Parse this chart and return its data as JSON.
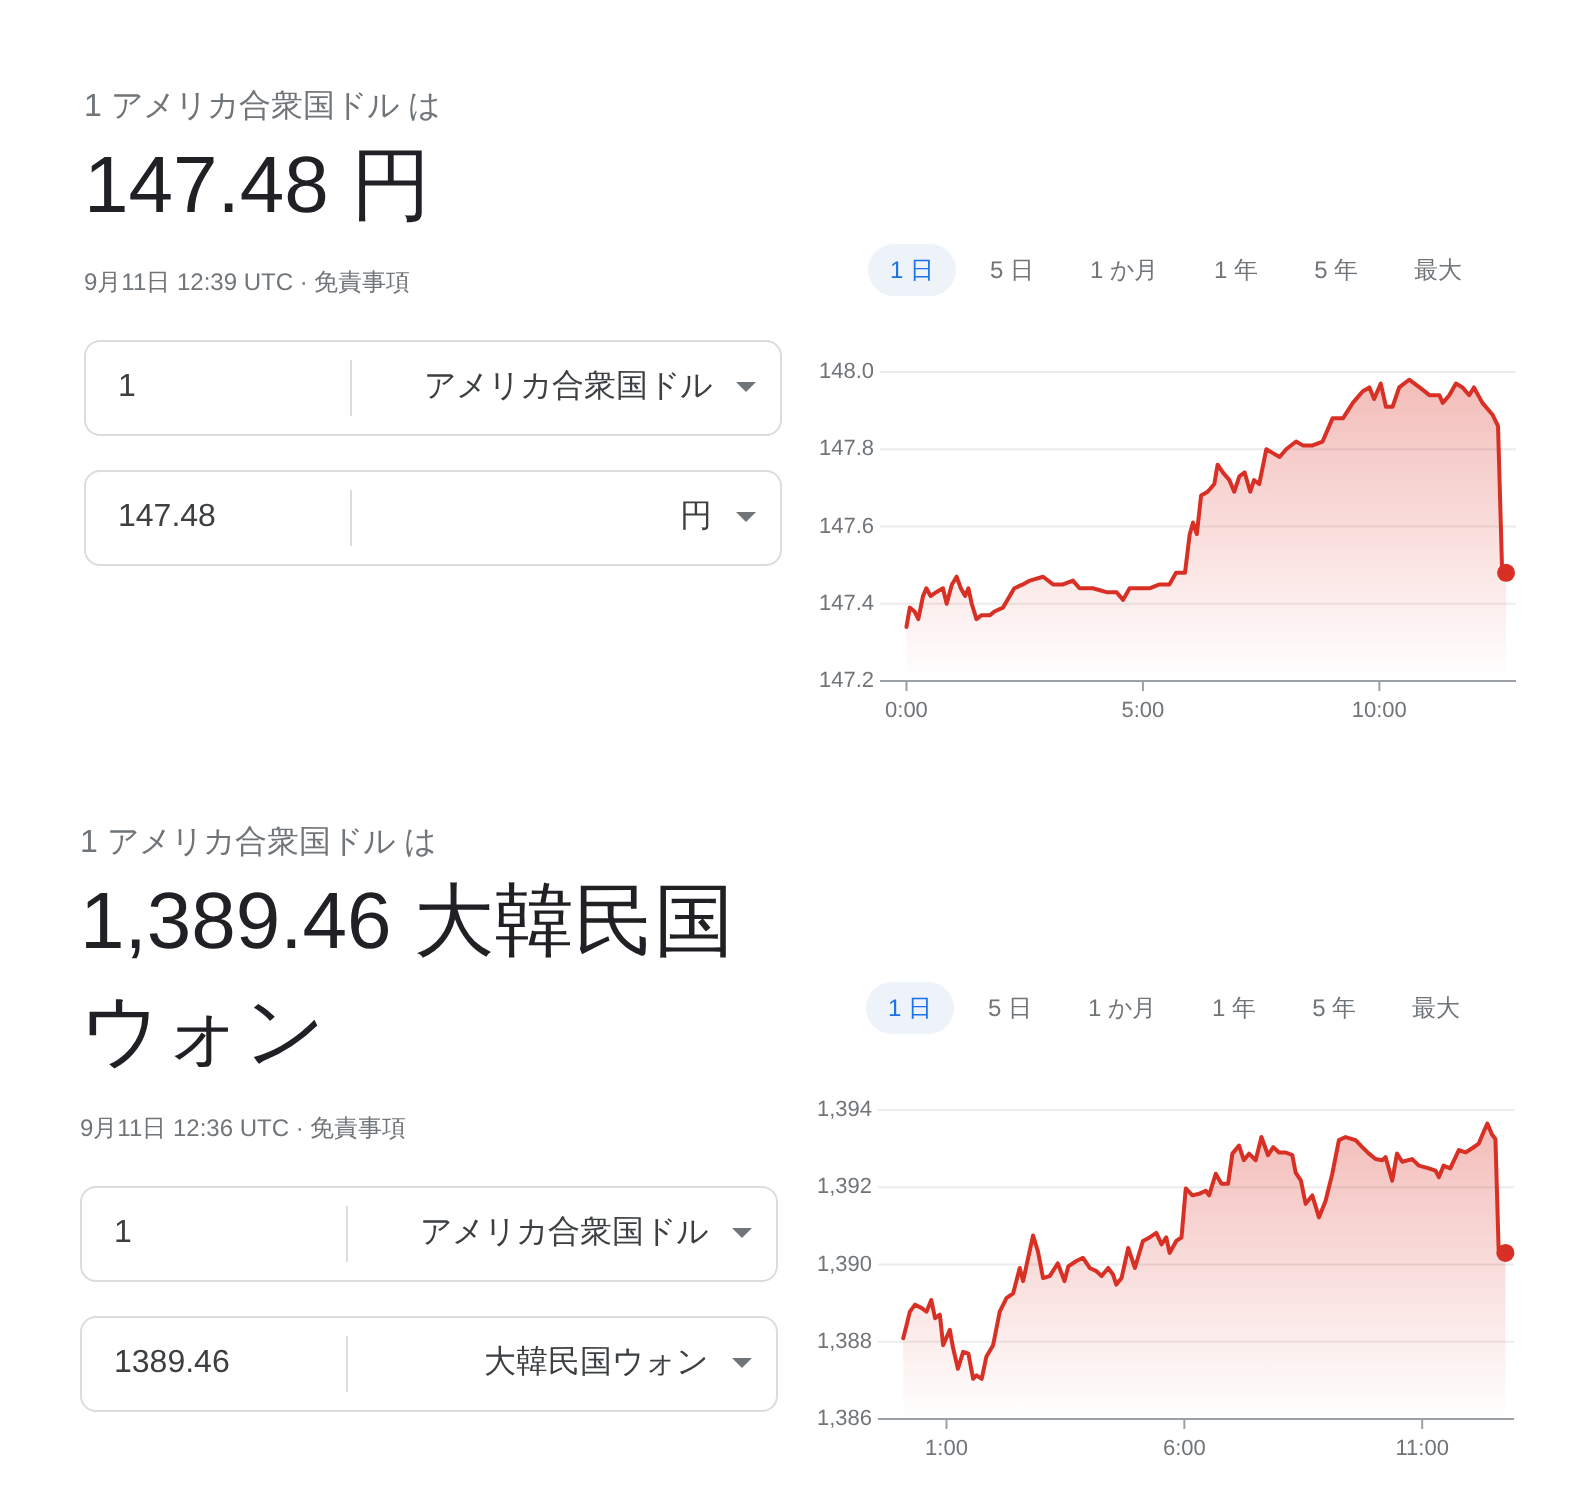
{
  "chart_data": [
    {
      "type": "other",
      "subtitle": "1 アメリカ合衆国ドル は",
      "title": "147.48 円",
      "annotations": [
        "9月11日 12:39 UTC · 免責事項",
        "1",
        "アメリカ合衆国ドル",
        "147.48",
        "円"
      ]
    },
    {
      "type": "area",
      "xlim": [
        -0.56,
        12.89
      ],
      "ylim": [
        147.2,
        148.0
      ],
      "xticks": [
        {
          "value": 0,
          "label": "0:00"
        },
        {
          "value": 5,
          "label": "5:00"
        },
        {
          "value": 10,
          "label": "10:00"
        }
      ],
      "yticks": [
        {
          "value": 147.2,
          "label": "147.2"
        },
        {
          "value": 147.4,
          "label": "147.4"
        },
        {
          "value": 147.6,
          "label": "147.6"
        },
        {
          "value": 147.8,
          "label": "147.8"
        },
        {
          "value": 148,
          "label": "148.0"
        }
      ],
      "grid": "y",
      "annotations": [
        "1 日",
        "5 日",
        "1 か月",
        "1 年",
        "5 年",
        "最大"
      ],
      "series": [
        {
          "type": "area",
          "color": "#d93025",
          "x": [
            0,
            0.07,
            0.17,
            0.25,
            0.35,
            0.42,
            0.51,
            0.63,
            0.77,
            0.85,
            0.96,
            1.06,
            1.15,
            1.24,
            1.31,
            1.38,
            1.48,
            1.58,
            1.76,
            1.86,
            2.04,
            2.28,
            2.46,
            2.61,
            2.89,
            3.1,
            3.31,
            3.52,
            3.66,
            3.94,
            4.23,
            4.44,
            4.58,
            4.72,
            4.93,
            5.14,
            5.35,
            5.56,
            5.7,
            5.89,
            5.99,
            6.06,
            6.14,
            6.23,
            6.37,
            6.51,
            6.58,
            6.69,
            6.83,
            6.93,
            7.04,
            7.15,
            7.27,
            7.35,
            7.46,
            7.61,
            7.75,
            7.89,
            8.03,
            8.24,
            8.38,
            8.59,
            8.8,
            9.01,
            9.23,
            9.44,
            9.65,
            9.79,
            9.89,
            10.03,
            10.14,
            10.28,
            10.42,
            10.63,
            10.85,
            11.06,
            11.27,
            11.34,
            11.48,
            11.62,
            11.76,
            11.9,
            12.0,
            12.18,
            12.39,
            12.51,
            12.6,
            12.68
          ],
          "values": [
            147.34,
            147.39,
            147.38,
            147.36,
            147.42,
            147.44,
            147.42,
            147.43,
            147.44,
            147.4,
            147.45,
            147.47,
            147.44,
            147.42,
            147.44,
            147.4,
            147.36,
            147.37,
            147.37,
            147.38,
            147.39,
            147.44,
            147.45,
            147.46,
            147.47,
            147.45,
            147.45,
            147.46,
            147.44,
            147.44,
            147.43,
            147.43,
            147.41,
            147.44,
            147.44,
            147.44,
            147.45,
            147.45,
            147.48,
            147.48,
            147.58,
            147.61,
            147.58,
            147.68,
            147.69,
            147.71,
            147.76,
            147.74,
            147.72,
            147.69,
            147.73,
            147.74,
            147.69,
            147.72,
            147.71,
            147.8,
            147.79,
            147.78,
            147.8,
            147.82,
            147.81,
            147.81,
            147.82,
            147.88,
            147.88,
            147.92,
            147.95,
            147.96,
            147.93,
            147.97,
            147.91,
            147.91,
            147.96,
            147.98,
            147.96,
            147.94,
            147.94,
            147.92,
            147.94,
            147.97,
            147.96,
            147.94,
            147.96,
            147.92,
            147.89,
            147.86,
            147.47,
            147.48
          ]
        },
        {
          "type": "scatter",
          "color": "#d93025",
          "marker": "circle",
          "x": [
            12.68
          ],
          "values": [
            147.48
          ]
        }
      ]
    },
    {
      "type": "other",
      "subtitle": "1 アメリカ合衆国ドル は",
      "title": "1,389.46 大韓民国ウォン",
      "annotations": [
        "9月11日 12:36 UTC · 免責事項",
        "1",
        "アメリカ合衆国ドル",
        "1389.46",
        "大韓民国ウォン"
      ]
    },
    {
      "type": "area",
      "xlim": [
        -0.44,
        12.93
      ],
      "ylim": [
        1386,
        1394
      ],
      "xticks": [
        {
          "value": 1,
          "label": "1:00"
        },
        {
          "value": 6,
          "label": "6:00"
        },
        {
          "value": 11,
          "label": "11:00"
        }
      ],
      "yticks": [
        {
          "value": 1386,
          "label": "1,386"
        },
        {
          "value": 1388,
          "label": "1,388"
        },
        {
          "value": 1390,
          "label": "1,390"
        },
        {
          "value": 1392,
          "label": "1,392"
        },
        {
          "value": 1394,
          "label": "1,394"
        }
      ],
      "grid": "y",
      "annotations": [
        "1 日",
        "5 日",
        "1 か月",
        "1 年",
        "5 年",
        "最大"
      ],
      "series": [
        {
          "type": "area",
          "color": "#d93025",
          "x": [
            0.09,
            0.16,
            0.23,
            0.34,
            0.48,
            0.58,
            0.68,
            0.76,
            0.86,
            0.93,
            1.07,
            1.14,
            1.24,
            1.35,
            1.46,
            1.56,
            1.63,
            1.74,
            1.84,
            1.98,
            2.12,
            2.26,
            2.4,
            2.54,
            2.61,
            2.82,
            2.92,
            3.03,
            3.17,
            3.34,
            3.48,
            3.56,
            3.73,
            3.87,
            4.01,
            4.15,
            4.26,
            4.4,
            4.5,
            4.57,
            4.68,
            4.82,
            4.96,
            5.13,
            5.27,
            5.41,
            5.52,
            5.62,
            5.69,
            5.83,
            5.94,
            6.03,
            6.17,
            6.31,
            6.45,
            6.52,
            6.66,
            6.78,
            6.92,
            7.01,
            7.15,
            7.25,
            7.36,
            7.5,
            7.62,
            7.76,
            7.87,
            7.99,
            8.13,
            8.27,
            8.34,
            8.45,
            8.55,
            8.69,
            8.83,
            8.97,
            9.11,
            9.25,
            9.39,
            9.6,
            9.74,
            9.88,
            10.02,
            10.16,
            10.23,
            10.37,
            10.47,
            10.58,
            10.79,
            10.93,
            11.14,
            11.28,
            11.35,
            11.45,
            11.59,
            11.77,
            11.91,
            12.05,
            12.19,
            12.29,
            12.37,
            12.47,
            12.54,
            12.61,
            12.75
          ],
          "values": [
            1388.09,
            1388.43,
            1388.78,
            1388.96,
            1388.87,
            1388.78,
            1389.08,
            1388.61,
            1388.7,
            1387.91,
            1388.31,
            1387.83,
            1387.3,
            1387.74,
            1387.69,
            1387.04,
            1387.13,
            1387.04,
            1387.62,
            1387.91,
            1388.78,
            1389.13,
            1389.25,
            1389.91,
            1389.57,
            1390.75,
            1390.35,
            1389.65,
            1389.7,
            1390.03,
            1389.57,
            1389.95,
            1390.09,
            1390.17,
            1389.91,
            1389.83,
            1389.7,
            1389.91,
            1389.74,
            1389.48,
            1389.65,
            1390.43,
            1389.91,
            1390.61,
            1390.7,
            1390.82,
            1390.52,
            1390.7,
            1390.3,
            1390.61,
            1390.7,
            1391.97,
            1391.79,
            1391.83,
            1391.91,
            1391.79,
            1392.35,
            1392.09,
            1392.09,
            1392.87,
            1393.08,
            1392.7,
            1392.87,
            1392.7,
            1393.3,
            1392.83,
            1393.04,
            1392.9,
            1392.9,
            1392.83,
            1392.38,
            1392.17,
            1391.57,
            1391.79,
            1391.22,
            1391.65,
            1392.35,
            1393.22,
            1393.3,
            1393.22,
            1393.04,
            1392.87,
            1392.73,
            1392.7,
            1392.78,
            1392.17,
            1392.87,
            1392.66,
            1392.73,
            1392.56,
            1392.49,
            1392.43,
            1392.26,
            1392.56,
            1392.49,
            1392.96,
            1392.9,
            1393.01,
            1393.13,
            1393.43,
            1393.65,
            1393.36,
            1393.25,
            1390.26,
            1390.3
          ]
        },
        {
          "type": "scatter",
          "color": "#d93025",
          "marker": "circle",
          "x": [
            12.75
          ],
          "values": [
            1390.3
          ]
        }
      ]
    }
  ]
}
